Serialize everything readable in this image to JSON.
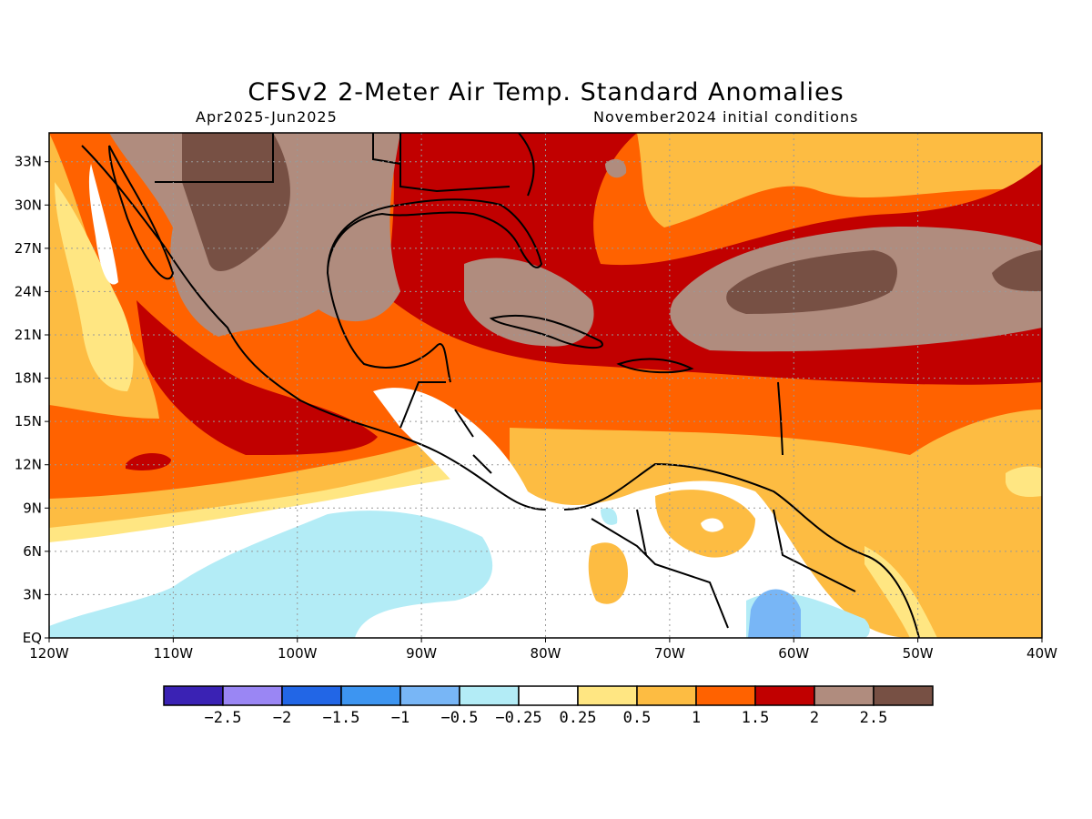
{
  "title": "CFSv2 2-Meter Air Temp. Standard Anomalies",
  "subtitle_left": "Apr2025-Jun2025",
  "subtitle_right": "November2024 initial conditions",
  "map": {
    "lon_range": [
      -120,
      -40
    ],
    "lat_range": [
      0,
      35
    ],
    "x_ticks": [
      "120W",
      "110W",
      "100W",
      "90W",
      "80W",
      "70W",
      "60W",
      "50W",
      "40W"
    ],
    "y_ticks": [
      "EQ",
      "3N",
      "6N",
      "9N",
      "12N",
      "15N",
      "18N",
      "21N",
      "24N",
      "27N",
      "30N",
      "33N"
    ],
    "grid": "dotted"
  },
  "colorbar": {
    "colors": [
      "#3a22b4",
      "#9a86f4",
      "#2266e6",
      "#3d95f1",
      "#78b6f6",
      "#b3ecf6",
      "#ffffff",
      "#ffe682",
      "#fdbc42",
      "#ff6200",
      "#c10000",
      "#b08c7e",
      "#775044"
    ],
    "labels": [
      "-2.5",
      "-2",
      "-1.5",
      "-1",
      "-0.5",
      "-0.25",
      "0.25",
      "0.5",
      "1",
      "1.5",
      "2",
      "2.5"
    ]
  }
}
